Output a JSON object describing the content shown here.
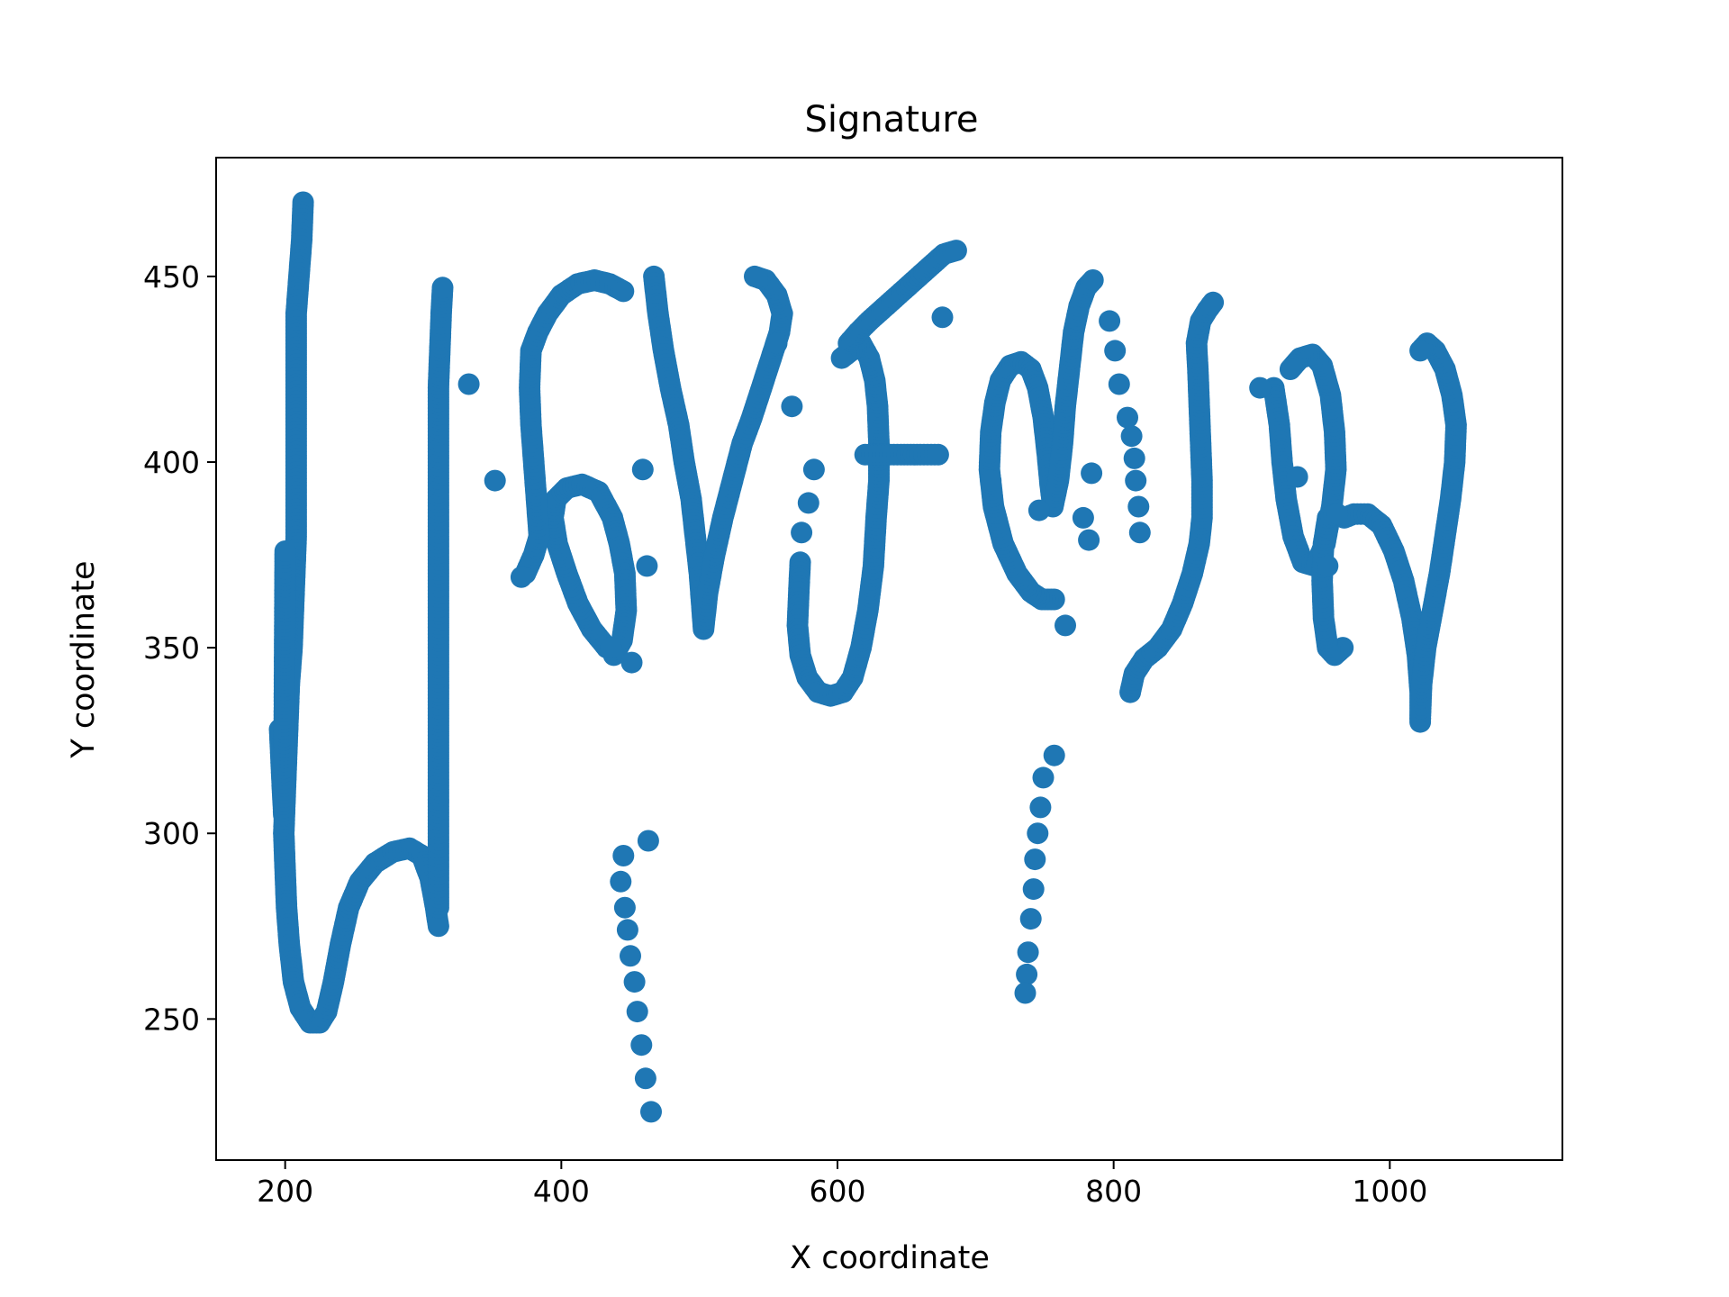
{
  "chart_data": {
    "type": "scatter",
    "title": "Signature",
    "xlabel": "X coordinate",
    "ylabel": "Y coordinate",
    "xlim": [
      150,
      1125
    ],
    "ylim": [
      212,
      482
    ],
    "xticks": [
      200,
      400,
      600,
      800,
      1000
    ],
    "yticks": [
      250,
      300,
      350,
      400,
      450
    ],
    "grid": false,
    "color": "#1f77b4",
    "strokes": [
      [
        [
          213,
          470
        ],
        [
          212,
          460
        ],
        [
          210,
          450
        ],
        [
          208,
          440
        ],
        [
          208,
          430
        ],
        [
          208,
          420
        ],
        [
          208,
          410
        ],
        [
          208,
          400
        ],
        [
          208,
          390
        ],
        [
          208,
          380
        ],
        [
          207,
          370
        ],
        [
          206,
          360
        ],
        [
          205,
          350
        ],
        [
          203,
          340
        ],
        [
          202,
          330
        ],
        [
          201,
          320
        ],
        [
          200,
          310
        ],
        [
          199,
          300
        ],
        [
          200,
          290
        ],
        [
          201,
          280
        ],
        [
          203,
          270
        ],
        [
          206,
          260
        ],
        [
          211,
          253
        ],
        [
          218,
          249
        ],
        [
          225,
          249
        ],
        [
          230,
          252
        ],
        [
          235,
          260
        ],
        [
          240,
          270
        ],
        [
          246,
          280
        ],
        [
          254,
          287
        ],
        [
          265,
          292
        ],
        [
          278,
          295
        ],
        [
          290,
          296
        ],
        [
          299,
          294
        ],
        [
          305,
          288
        ],
        [
          309,
          280
        ],
        [
          311,
          275
        ]
      ],
      [
        [
          311,
          280
        ],
        [
          311,
          290
        ],
        [
          311,
          300
        ],
        [
          311,
          310
        ],
        [
          311,
          320
        ],
        [
          311,
          330
        ],
        [
          311,
          340
        ],
        [
          311,
          350
        ],
        [
          311,
          360
        ],
        [
          311,
          370
        ],
        [
          311,
          380
        ],
        [
          311,
          390
        ],
        [
          311,
          400
        ],
        [
          311,
          410
        ],
        [
          311,
          420
        ],
        [
          312,
          430
        ],
        [
          313,
          440
        ],
        [
          314,
          447
        ]
      ],
      [
        [
          196,
          328
        ],
        [
          197,
          320
        ],
        [
          198,
          312
        ],
        [
          199,
          305
        ],
        [
          200,
          376
        ]
      ],
      [
        [
          433,
          350
        ],
        [
          422,
          355
        ],
        [
          412,
          362
        ],
        [
          404,
          370
        ],
        [
          397,
          378
        ],
        [
          394,
          385
        ],
        [
          396,
          390
        ],
        [
          404,
          393
        ],
        [
          415,
          394
        ],
        [
          427,
          392
        ],
        [
          437,
          385
        ],
        [
          442,
          378
        ],
        [
          446,
          370
        ],
        [
          447,
          360
        ],
        [
          444,
          352
        ],
        [
          438,
          348
        ],
        [
          436,
          350
        ]
      ],
      [
        [
          374,
          370
        ],
        [
          380,
          375
        ],
        [
          384,
          380
        ],
        [
          382,
          390
        ],
        [
          380,
          400
        ],
        [
          378,
          410
        ],
        [
          377,
          420
        ],
        [
          378,
          430
        ],
        [
          383,
          435
        ],
        [
          390,
          440
        ],
        [
          400,
          445
        ],
        [
          412,
          448
        ],
        [
          424,
          449
        ],
        [
          435,
          448
        ],
        [
          445,
          446
        ]
      ],
      [
        [
          467,
          450
        ],
        [
          470,
          440
        ],
        [
          474,
          430
        ],
        [
          479,
          420
        ],
        [
          485,
          410
        ],
        [
          489,
          400
        ],
        [
          494,
          390
        ],
        [
          497,
          380
        ],
        [
          500,
          370
        ],
        [
          502,
          360
        ],
        [
          503,
          355
        ],
        [
          506,
          365
        ],
        [
          511,
          375
        ],
        [
          517,
          385
        ],
        [
          524,
          395
        ],
        [
          531,
          405
        ],
        [
          538,
          412
        ],
        [
          545,
          420
        ],
        [
          552,
          428
        ],
        [
          558,
          435
        ],
        [
          560,
          440
        ],
        [
          556,
          445
        ],
        [
          548,
          449
        ],
        [
          540,
          450
        ]
      ],
      [
        [
          573,
          373
        ],
        [
          572,
          365
        ],
        [
          571,
          356
        ],
        [
          573,
          348
        ],
        [
          578,
          342
        ],
        [
          586,
          338
        ],
        [
          595,
          337
        ],
        [
          604,
          338
        ],
        [
          611,
          342
        ],
        [
          617,
          350
        ],
        [
          622,
          360
        ],
        [
          626,
          372
        ],
        [
          628,
          385
        ],
        [
          630,
          395
        ],
        [
          630,
          405
        ],
        [
          629,
          415
        ],
        [
          627,
          422
        ],
        [
          623,
          428
        ],
        [
          617,
          432
        ],
        [
          610,
          430
        ],
        [
          603,
          428
        ]
      ],
      [
        [
          608,
          432
        ],
        [
          615,
          435
        ],
        [
          623,
          438
        ],
        [
          632,
          441
        ],
        [
          641,
          444
        ],
        [
          650,
          447
        ],
        [
          659,
          450
        ],
        [
          668,
          453
        ],
        [
          677,
          456
        ],
        [
          686,
          457
        ]
      ],
      [
        [
          620,
          402
        ],
        [
          633,
          402
        ],
        [
          646,
          402
        ],
        [
          660,
          402
        ],
        [
          673,
          402
        ]
      ],
      [
        [
          757,
          363
        ],
        [
          748,
          363
        ],
        [
          740,
          365
        ],
        [
          730,
          370
        ],
        [
          720,
          378
        ],
        [
          713,
          388
        ],
        [
          710,
          398
        ],
        [
          711,
          408
        ],
        [
          714,
          416
        ],
        [
          718,
          422
        ],
        [
          725,
          426
        ],
        [
          733,
          427
        ],
        [
          740,
          425
        ],
        [
          745,
          420
        ],
        [
          749,
          412
        ],
        [
          752,
          402
        ],
        [
          754,
          394
        ],
        [
          756,
          388
        ],
        [
          760,
          395
        ],
        [
          763,
          405
        ],
        [
          765,
          415
        ],
        [
          768,
          425
        ],
        [
          771,
          435
        ],
        [
          775,
          442
        ],
        [
          780,
          447
        ],
        [
          785,
          449
        ]
      ],
      [
        [
          812,
          338
        ],
        [
          815,
          343
        ],
        [
          822,
          347
        ],
        [
          832,
          350
        ],
        [
          842,
          355
        ],
        [
          850,
          362
        ],
        [
          857,
          370
        ],
        [
          862,
          378
        ],
        [
          864,
          385
        ],
        [
          864,
          395
        ],
        [
          863,
          405
        ],
        [
          862,
          415
        ],
        [
          861,
          425
        ],
        [
          860,
          432
        ],
        [
          863,
          438
        ],
        [
          868,
          441
        ],
        [
          872,
          443
        ]
      ],
      [
        [
          916,
          420
        ],
        [
          920,
          410
        ],
        [
          922,
          400
        ],
        [
          925,
          390
        ],
        [
          930,
          380
        ],
        [
          937,
          373
        ],
        [
          946,
          372
        ],
        [
          953,
          378
        ],
        [
          958,
          388
        ],
        [
          961,
          398
        ],
        [
          960,
          408
        ],
        [
          957,
          418
        ],
        [
          951,
          426
        ],
        [
          944,
          429
        ],
        [
          935,
          428
        ],
        [
          928,
          425
        ]
      ],
      [
        [
          967,
          385
        ],
        [
          974,
          386
        ],
        [
          984,
          386
        ],
        [
          994,
          383
        ],
        [
          1003,
          376
        ],
        [
          1010,
          368
        ],
        [
          1016,
          358
        ],
        [
          1020,
          348
        ],
        [
          1022,
          338
        ],
        [
          1022,
          330
        ],
        [
          1023,
          340
        ],
        [
          1026,
          350
        ],
        [
          1031,
          360
        ],
        [
          1036,
          370
        ],
        [
          1040,
          380
        ],
        [
          1044,
          390
        ],
        [
          1047,
          400
        ],
        [
          1048,
          410
        ],
        [
          1045,
          418
        ],
        [
          1040,
          425
        ],
        [
          1033,
          430
        ],
        [
          1027,
          432
        ],
        [
          1022,
          430
        ]
      ],
      [
        [
          966,
          350
        ],
        [
          960,
          348
        ],
        [
          955,
          350
        ],
        [
          952,
          358
        ],
        [
          951,
          368
        ],
        [
          952,
          378
        ],
        [
          955,
          385
        ],
        [
          962,
          386
        ]
      ]
    ],
    "points": [
      [
        333,
        421
      ],
      [
        352,
        395
      ],
      [
        371,
        369
      ],
      [
        459,
        398
      ],
      [
        462,
        372
      ],
      [
        451,
        346
      ],
      [
        463,
        298
      ],
      [
        445,
        294
      ],
      [
        443,
        287
      ],
      [
        446,
        280
      ],
      [
        448,
        274
      ],
      [
        450,
        267
      ],
      [
        453,
        260
      ],
      [
        455,
        252
      ],
      [
        458,
        243
      ],
      [
        461,
        234
      ],
      [
        465,
        225
      ],
      [
        556,
        432
      ],
      [
        567,
        415
      ],
      [
        583,
        398
      ],
      [
        579,
        389
      ],
      [
        574,
        381
      ],
      [
        676,
        439
      ],
      [
        711,
        395
      ],
      [
        746,
        387
      ],
      [
        765,
        356
      ],
      [
        757,
        321
      ],
      [
        749,
        315
      ],
      [
        747,
        307
      ],
      [
        745,
        300
      ],
      [
        743,
        293
      ],
      [
        742,
        285
      ],
      [
        740,
        277
      ],
      [
        738,
        268
      ],
      [
        737,
        262
      ],
      [
        736,
        257
      ],
      [
        784,
        397
      ],
      [
        778,
        385
      ],
      [
        782,
        379
      ],
      [
        797,
        438
      ],
      [
        801,
        430
      ],
      [
        804,
        421
      ],
      [
        810,
        412
      ],
      [
        813,
        407
      ],
      [
        815,
        401
      ],
      [
        816,
        395
      ],
      [
        818,
        388
      ],
      [
        819,
        381
      ],
      [
        906,
        420
      ],
      [
        933,
        396
      ],
      [
        955,
        372
      ]
    ]
  }
}
